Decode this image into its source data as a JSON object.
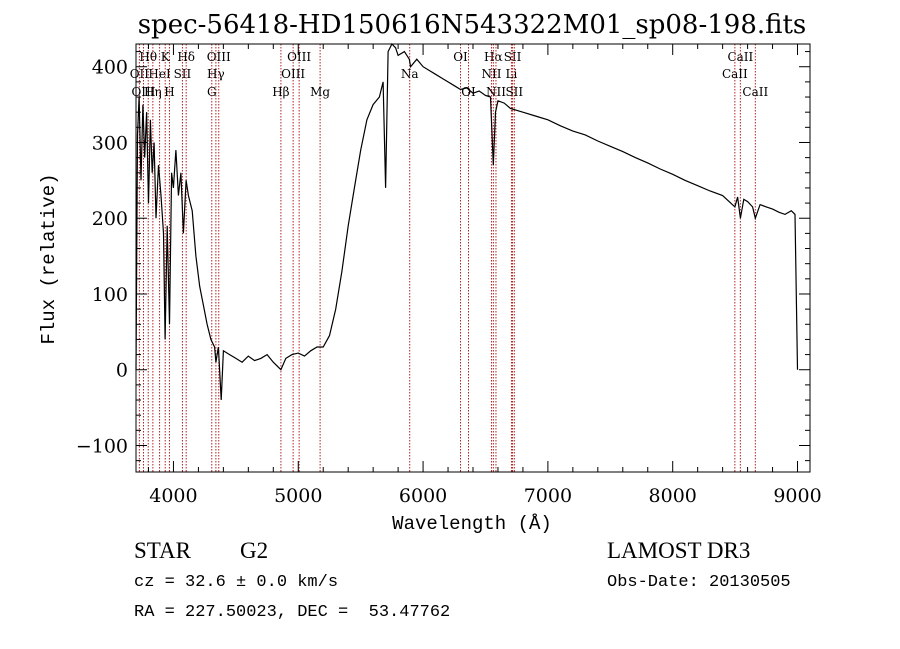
{
  "chart_data": {
    "type": "line",
    "title": "spec-56418-HD150616N543322M01_sp08-198.fits",
    "xlabel": "Wavelength (Å)",
    "ylabel": "Flux (relative)",
    "xlim": [
      3700,
      9100
    ],
    "ylim": [
      -135,
      430
    ],
    "xticks": [
      4000,
      5000,
      6000,
      7000,
      8000,
      9000
    ],
    "yticks": [
      -100,
      0,
      100,
      200,
      300,
      400
    ],
    "xtick_labels": [
      "4000",
      "5000",
      "6000",
      "7000",
      "8000",
      "9000"
    ],
    "ytick_labels": [
      "−100",
      "0",
      "100",
      "200",
      "300",
      "400"
    ],
    "line_color": "#000000",
    "marker_color": "#b22222",
    "series": [
      {
        "name": "flux",
        "x": [
          3700,
          3712,
          3725,
          3740,
          3755,
          3770,
          3785,
          3800,
          3815,
          3830,
          3845,
          3860,
          3880,
          3900,
          3920,
          3933,
          3950,
          3968,
          3985,
          4000,
          4020,
          4040,
          4060,
          4080,
          4101,
          4120,
          4150,
          4180,
          4210,
          4240,
          4270,
          4300,
          4330,
          4340,
          4360,
          4383,
          4400,
          4450,
          4500,
          4550,
          4600,
          4650,
          4700,
          4750,
          4800,
          4861,
          4900,
          4950,
          5000,
          5050,
          5100,
          5150,
          5200,
          5250,
          5300,
          5350,
          5400,
          5450,
          5500,
          5550,
          5600,
          5650,
          5680,
          5700,
          5720,
          5750,
          5780,
          5800,
          5850,
          5890,
          5900,
          5950,
          6000,
          6050,
          6100,
          6150,
          6200,
          6250,
          6300,
          6350,
          6400,
          6450,
          6500,
          6540,
          6563,
          6580,
          6600,
          6650,
          6700,
          6800,
          6900,
          7000,
          7100,
          7200,
          7300,
          7400,
          7500,
          7600,
          7700,
          7800,
          7900,
          8000,
          8100,
          8200,
          8300,
          8400,
          8498,
          8520,
          8542,
          8570,
          8600,
          8640,
          8662,
          8700,
          8750,
          8800,
          8850,
          8900,
          8950,
          8980,
          9000
        ],
        "y": [
          0,
          310,
          360,
          250,
          350,
          280,
          340,
          220,
          330,
          260,
          300,
          200,
          270,
          230,
          180,
          40,
          190,
          60,
          260,
          240,
          290,
          230,
          260,
          180,
          250,
          230,
          210,
          150,
          110,
          85,
          60,
          40,
          30,
          10,
          30,
          -40,
          25,
          20,
          15,
          10,
          18,
          12,
          15,
          20,
          10,
          0,
          15,
          20,
          22,
          18,
          25,
          30,
          30,
          45,
          80,
          130,
          190,
          240,
          290,
          330,
          350,
          360,
          380,
          240,
          420,
          430,
          425,
          415,
          420,
          410,
          400,
          410,
          400,
          395,
          390,
          385,
          380,
          375,
          370,
          372,
          365,
          368,
          362,
          360,
          270,
          340,
          355,
          352,
          345,
          340,
          335,
          330,
          322,
          315,
          310,
          302,
          295,
          288,
          280,
          273,
          265,
          258,
          250,
          243,
          236,
          230,
          215,
          228,
          200,
          225,
          222,
          215,
          200,
          218,
          215,
          212,
          208,
          205,
          210,
          205,
          0
        ]
      }
    ],
    "lines": [
      {
        "label": "Hθ",
        "wavelength": 3798,
        "row": 1
      },
      {
        "label": "OII",
        "wavelength": 3727,
        "row": 2
      },
      {
        "label": "OIII",
        "wavelength": 3760,
        "row": 3
      },
      {
        "label": "Hη",
        "wavelength": 3835,
        "row": 3
      },
      {
        "label": "HeI",
        "wavelength": 3889,
        "row": 2
      },
      {
        "label": "K",
        "wavelength": 3934,
        "row": 1
      },
      {
        "label": "SII",
        "wavelength": 4072,
        "row": 2
      },
      {
        "label": "H",
        "wavelength": 3968,
        "row": 3
      },
      {
        "label": "Hδ",
        "wavelength": 4102,
        "row": 1
      },
      {
        "label": "OIII",
        "wavelength": 4363,
        "row": 1
      },
      {
        "label": "Hγ",
        "wavelength": 4340,
        "row": 2
      },
      {
        "label": "G",
        "wavelength": 4307,
        "row": 3
      },
      {
        "label": "Hβ",
        "wavelength": 4861,
        "row": 3
      },
      {
        "label": "OIII",
        "wavelength": 5007,
        "row": 1
      },
      {
        "label": "OIII",
        "wavelength": 4959,
        "row": 2
      },
      {
        "label": "Mg",
        "wavelength": 5175,
        "row": 3
      },
      {
        "label": "Na",
        "wavelength": 5893,
        "row": 2
      },
      {
        "label": "OI",
        "wavelength": 6300,
        "row": 1
      },
      {
        "label": "OI",
        "wavelength": 6364,
        "row": 3
      },
      {
        "label": "Hα",
        "wavelength": 6563,
        "row": 1
      },
      {
        "label": "NII",
        "wavelength": 6548,
        "row": 2
      },
      {
        "label": "NII",
        "wavelength": 6584,
        "row": 3
      },
      {
        "label": "SII",
        "wavelength": 6717,
        "row": 1
      },
      {
        "label": "Li",
        "wavelength": 6708,
        "row": 2
      },
      {
        "label": "SII",
        "wavelength": 6731,
        "row": 3
      },
      {
        "label": "CaII",
        "wavelength": 8542,
        "row": 1
      },
      {
        "label": "CaII",
        "wavelength": 8498,
        "row": 2
      },
      {
        "label": "CaII",
        "wavelength": 8662,
        "row": 3
      }
    ]
  },
  "info": {
    "object_class": "STAR",
    "subclass": "G2",
    "redshift": "cz = 32.6 ± 0.0 km/s",
    "coords": "RA = 227.50023, DEC =  53.47762",
    "survey": "LAMOST DR3",
    "obs_date": "Obs-Date: 20130505"
  }
}
